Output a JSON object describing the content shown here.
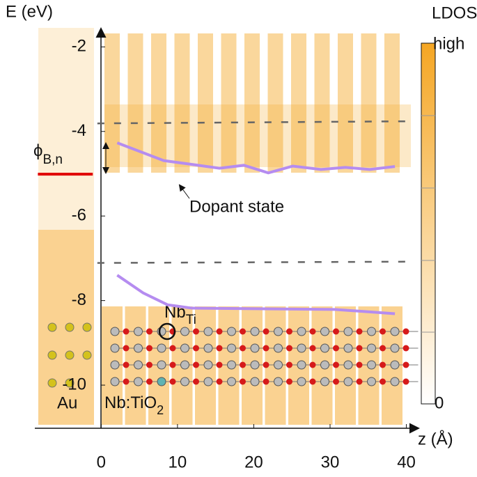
{
  "chart_data": {
    "type": "line",
    "y_label": "E (eV)",
    "x_label": "z (Å)",
    "xlim": [
      -8.7,
      41.5
    ],
    "ylim": [
      -11.02,
      -1.55
    ],
    "xticks": [
      0,
      10,
      20,
      30,
      40
    ],
    "yticks": [
      -2,
      -4,
      -6,
      -8,
      -10
    ],
    "series": [
      {
        "color": "#b58cf0",
        "x": [
          2.1,
          8.2,
          11.9,
          15.5,
          18.7,
          21.9,
          25.1,
          28.8,
          32.0,
          35.2,
          38.5
        ],
        "values": [
          -4.27,
          -4.69,
          -4.78,
          -4.87,
          -4.8,
          -4.98,
          -4.82,
          -4.9,
          -4.85,
          -4.9,
          -4.83
        ]
      },
      {
        "color": "#b58cf0",
        "x": [
          2.1,
          5.5,
          8.7,
          11.9,
          30.6,
          38.5
        ],
        "values": [
          -7.4,
          -7.82,
          -8.1,
          -8.18,
          -8.21,
          -8.31
        ]
      },
      {
        "color": "#666666",
        "dash": true,
        "x": [
          -0.5,
          40
        ],
        "values": [
          -3.81,
          -3.76
        ]
      },
      {
        "color": "#666666",
        "dash": true,
        "x": [
          -0.5,
          40
        ],
        "values": [
          -7.11,
          -7.08
        ]
      },
      {
        "color": "#e00000",
        "x": [
          -8.3,
          -1.1
        ],
        "values": [
          -5.01,
          -5.01
        ]
      }
    ],
    "annotations": {
      "barrier": {
        "text": "ϕ",
        "sub": "B,n"
      },
      "dopant": "Dopant state",
      "nb": {
        "text": "Nb",
        "sub": "Ti"
      },
      "au": "Au",
      "tio2": {
        "text": "Nb:TiO",
        "sub": "2"
      }
    },
    "colorbar": {
      "label": "LDOS",
      "top": "high",
      "bottom": "0"
    }
  }
}
